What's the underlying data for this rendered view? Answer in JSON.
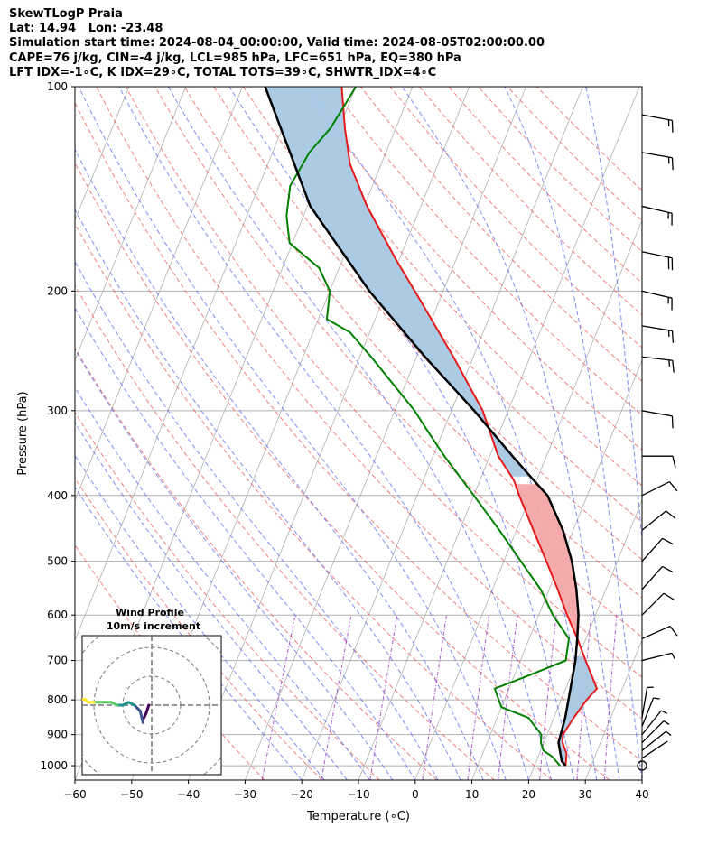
{
  "header": {
    "title": "SkewTLogP Praia",
    "location": "Lat: 14.94   Lon: -23.48",
    "times": "Simulation start time: 2024-08-04_00:00:00, Valid time: 2024-08-05T02:00:00.00",
    "params1": "CAPE=76 j/kg, CIN=-4 j/kg, LCL=985 hPa, LFC=651 hPa, EQ=380 hPa",
    "params2": "LFT IDX=-1∘C, K IDX=29∘C, TOTAL TOTS=39∘C, SHWTR_IDX=4∘C"
  },
  "chart_data": {
    "type": "line",
    "xlabel": "Temperature (∘C)",
    "ylabel": "Pressure (hPa)",
    "xlim": [
      -60,
      40
    ],
    "ylim": [
      1050,
      100
    ],
    "y_scale": "log",
    "x_ticks": [
      "−60",
      "−50",
      "−40",
      "−30",
      "−20",
      "−10",
      "0",
      "10",
      "20",
      "30",
      "40"
    ],
    "y_ticks": [
      "100",
      "200",
      "300",
      "400",
      "500",
      "600",
      "700",
      "800",
      "900",
      "1000"
    ],
    "grid": true,
    "series": [
      {
        "role": "temperature",
        "color": "#e41a1c",
        "points": [
          [
            1000,
            25.5
          ],
          [
            960,
            24.8
          ],
          [
            925,
            23.3
          ],
          [
            900,
            22.8
          ],
          [
            850,
            23.5
          ],
          [
            800,
            24.5
          ],
          [
            770,
            25.5
          ],
          [
            700,
            21.5
          ],
          [
            650,
            18.5
          ],
          [
            600,
            15.0
          ],
          [
            550,
            11.5
          ],
          [
            500,
            7.5
          ],
          [
            450,
            3.0
          ],
          [
            400,
            -2.0
          ],
          [
            380,
            -4.0
          ],
          [
            350,
            -8.5
          ],
          [
            300,
            -14.5
          ],
          [
            250,
            -23.5
          ],
          [
            200,
            -35.0
          ],
          [
            180,
            -40.5
          ],
          [
            150,
            -49.5
          ],
          [
            130,
            -55.5
          ],
          [
            115,
            -59.0
          ],
          [
            100,
            -62.5
          ]
        ]
      },
      {
        "role": "dewpoint",
        "color": "#008000",
        "points": [
          [
            1000,
            24.5
          ],
          [
            970,
            22.5
          ],
          [
            950,
            20.5
          ],
          [
            925,
            19.5
          ],
          [
            900,
            19.0
          ],
          [
            850,
            15.5
          ],
          [
            820,
            10.0
          ],
          [
            800,
            9.0
          ],
          [
            770,
            7.5
          ],
          [
            740,
            12.0
          ],
          [
            700,
            18.0
          ],
          [
            650,
            17.0
          ],
          [
            600,
            12.5
          ],
          [
            550,
            8.5
          ],
          [
            500,
            3.0
          ],
          [
            450,
            -3.0
          ],
          [
            400,
            -10.0
          ],
          [
            350,
            -18.0
          ],
          [
            320,
            -23.0
          ],
          [
            300,
            -26.5
          ],
          [
            275,
            -32.0
          ],
          [
            250,
            -38.0
          ],
          [
            230,
            -43.5
          ],
          [
            220,
            -48.5
          ],
          [
            200,
            -50.0
          ],
          [
            185,
            -53.5
          ],
          [
            170,
            -60.5
          ],
          [
            155,
            -63.0
          ],
          [
            140,
            -64.5
          ],
          [
            125,
            -63.5
          ],
          [
            115,
            -61.5
          ],
          [
            100,
            -60.0
          ]
        ]
      },
      {
        "role": "parcel",
        "color": "#000000",
        "points": [
          [
            1000,
            25.5
          ],
          [
            985,
            24.5
          ],
          [
            925,
            22.6
          ],
          [
            850,
            22.0
          ],
          [
            800,
            21.3
          ],
          [
            700,
            19.7
          ],
          [
            651,
            18.5
          ],
          [
            600,
            17.0
          ],
          [
            550,
            14.8
          ],
          [
            500,
            12.0
          ],
          [
            450,
            8.2
          ],
          [
            400,
            3.0
          ],
          [
            380,
            -0.5
          ],
          [
            350,
            -6.0
          ],
          [
            300,
            -16.0
          ],
          [
            250,
            -28.5
          ],
          [
            200,
            -43.0
          ],
          [
            150,
            -59.5
          ],
          [
            100,
            -76.0
          ]
        ]
      }
    ],
    "wind_barbs": [
      {
        "p": 1000,
        "u": -2,
        "v": 1
      },
      {
        "p": 975,
        "u": -3,
        "v": -2
      },
      {
        "p": 950,
        "u": -5,
        "v": -4
      },
      {
        "p": 925,
        "u": -5,
        "v": -5
      },
      {
        "p": 900,
        "u": -4,
        "v": -5
      },
      {
        "p": 875,
        "u": -2,
        "v": -5
      },
      {
        "p": 850,
        "u": -1,
        "v": -6
      },
      {
        "p": 700,
        "u": -8,
        "v": -2
      },
      {
        "p": 650,
        "u": -9,
        "v": -4
      },
      {
        "p": 600,
        "u": -9,
        "v": -9
      },
      {
        "p": 550,
        "u": -8,
        "v": -9
      },
      {
        "p": 500,
        "u": -8,
        "v": -9
      },
      {
        "p": 450,
        "u": -10,
        "v": -8
      },
      {
        "p": 400,
        "u": -10,
        "v": -5
      },
      {
        "p": 350,
        "u": -11,
        "v": 0
      },
      {
        "p": 300,
        "u": -11,
        "v": 2
      },
      {
        "p": 250,
        "u": -17,
        "v": 2
      },
      {
        "p": 225,
        "u": -18,
        "v": 3
      },
      {
        "p": 200,
        "u": -17,
        "v": 4
      },
      {
        "p": 175,
        "u": -19,
        "v": 4
      },
      {
        "p": 150,
        "u": -17,
        "v": 4
      },
      {
        "p": 125,
        "u": -17,
        "v": 3
      },
      {
        "p": 110,
        "u": -16,
        "v": 3
      }
    ],
    "cape_fill_color": "#f4a7a7",
    "cin_fill_color": "#a6c8e4",
    "isotherm_color": "#b0b0b0",
    "dry_adiabat_color": "#f06060",
    "moist_adiabat_color": "#6070f0",
    "mixing_ratio_color": "#9b30c0",
    "inset": {
      "title": "Wind Profile",
      "subtitle": "10m/s increment",
      "hodograph": [
        [
          -1,
          0
        ],
        [
          -2,
          -3
        ],
        [
          -3,
          -5
        ],
        [
          -3,
          -6
        ],
        [
          -4,
          -2
        ],
        [
          -5,
          -1
        ],
        [
          -6,
          0
        ],
        [
          -8,
          1
        ],
        [
          -10,
          0
        ],
        [
          -12,
          0
        ],
        [
          -14,
          1
        ],
        [
          -18,
          1
        ],
        [
          -20,
          1
        ],
        [
          -22,
          1
        ],
        [
          -23,
          2
        ],
        [
          -24,
          2
        ]
      ],
      "colormap": [
        "#440154",
        "#3b528b",
        "#21918c",
        "#5ec962",
        "#fde725"
      ]
    }
  }
}
